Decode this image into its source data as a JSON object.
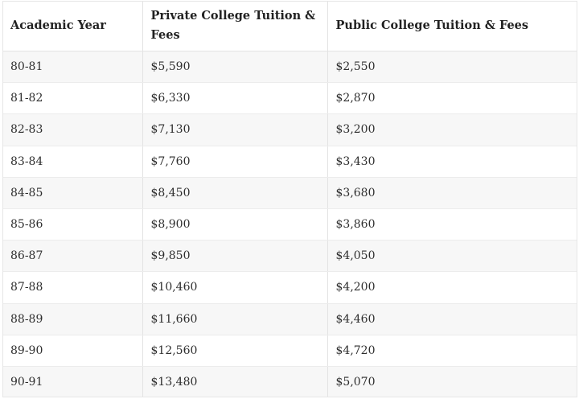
{
  "table": {
    "headers": [
      "Academic Year",
      "Private College Tuition & Fees",
      "Public College Tuition & Fees"
    ],
    "rows": [
      [
        "80-81",
        "$5,590",
        "$2,550"
      ],
      [
        "81-82",
        "$6,330",
        "$2,870"
      ],
      [
        "82-83",
        "$7,130",
        "$3,200"
      ],
      [
        "83-84",
        "$7,760",
        "$3,430"
      ],
      [
        "84-85",
        "$8,450",
        "$3,680"
      ],
      [
        "85-86",
        "$8,900",
        "$3,860"
      ],
      [
        "86-87",
        "$9,850",
        "$4,050"
      ],
      [
        "87-88",
        "$10,460",
        "$4,200"
      ],
      [
        "88-89",
        "$11,660",
        "$4,460"
      ],
      [
        "89-90",
        "$12,560",
        "$4,720"
      ],
      [
        "90-91",
        "$13,480",
        "$5,070"
      ]
    ]
  },
  "colors": {
    "row_stripe": "#f7f7f7",
    "row_plain": "#ffffff",
    "grid_line": "#e3e3e3",
    "text": "#2e2e2e"
  }
}
